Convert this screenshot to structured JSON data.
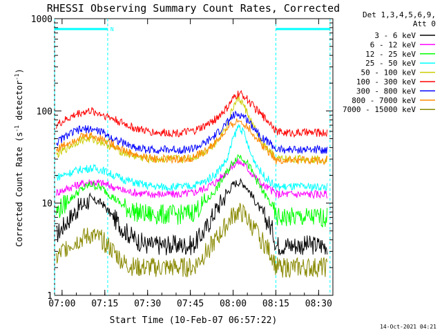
{
  "chart_data": {
    "type": "line",
    "title": "RHESSI Observing Summary Count Rates, Corrected",
    "xlabel": "Start Time (10-Feb-07 06:57:22)",
    "ylabel_main": "Corrected Count Rate (s",
    "ylabel_exp1": "-1",
    "ylabel_mid": " detector",
    "ylabel_exp2": "-1",
    "ylabel_end": ")",
    "y_scale": "log",
    "ylim": [
      1,
      1000
    ],
    "xlim": [
      "06:57:22",
      "08:35:00"
    ],
    "x_ticks": [
      "07:00",
      "07:15",
      "07:30",
      "07:45",
      "08:00",
      "08:15",
      "08:30"
    ],
    "y_ticks": [
      "1",
      "10",
      "100",
      "1000"
    ],
    "grid": false,
    "legend_position": "right",
    "legend_header": [
      "Det 1,3,4,5,6,9,",
      "Att 0"
    ],
    "footer_date": "14-Oct-2021 04:21",
    "night_intervals": [
      {
        "start": "06:57:22",
        "end": "07:16:00",
        "label": "N"
      },
      {
        "start": "08:15:00",
        "end": "08:34:00",
        "label": ""
      }
    ],
    "series": [
      {
        "name": "3 - 6 keV",
        "color": "#000000",
        "x": [
          "06:58",
          "07:02",
          "07:06",
          "07:10",
          "07:14",
          "07:18",
          "07:22",
          "07:26",
          "07:30",
          "07:34",
          "07:38",
          "07:42",
          "07:46",
          "07:50",
          "07:54",
          "07:58",
          "08:00",
          "08:02",
          "08:04",
          "08:06",
          "08:10",
          "08:14",
          "08:15",
          "08:18",
          "08:22",
          "08:26",
          "08:30",
          "08:33"
        ],
        "y": [
          4.5,
          6.5,
          9,
          11,
          10,
          7,
          5,
          4,
          3.5,
          3.5,
          3.5,
          3.5,
          3.5,
          5,
          8.5,
          13,
          16,
          17,
          16,
          13,
          8,
          5,
          3.5,
          3.5,
          3.5,
          3.5,
          3.5,
          3.5
        ]
      },
      {
        "name": "6 - 12 keV",
        "color": "#ff00ff",
        "x": [
          "06:58",
          "07:02",
          "07:06",
          "07:10",
          "07:14",
          "07:18",
          "07:22",
          "07:26",
          "07:30",
          "07:34",
          "07:38",
          "07:42",
          "07:46",
          "07:50",
          "07:54",
          "07:58",
          "08:00",
          "08:02",
          "08:04",
          "08:06",
          "08:10",
          "08:14",
          "08:15",
          "08:18",
          "08:22",
          "08:26",
          "08:30",
          "08:33"
        ],
        "y": [
          13,
          14.5,
          16,
          17,
          16.5,
          15,
          13.5,
          13,
          12.5,
          12.5,
          12.5,
          12.5,
          13,
          14.5,
          17,
          22,
          26,
          28,
          26,
          22,
          16,
          13.5,
          12.5,
          12.5,
          12.5,
          12.5,
          12.5,
          12.5
        ]
      },
      {
        "name": "12 - 25 keV",
        "color": "#00ff00",
        "x": [
          "06:58",
          "07:02",
          "07:06",
          "07:10",
          "07:14",
          "07:18",
          "07:22",
          "07:26",
          "07:30",
          "07:34",
          "07:38",
          "07:42",
          "07:46",
          "07:50",
          "07:54",
          "07:58",
          "08:00",
          "08:02",
          "08:04",
          "08:06",
          "08:10",
          "08:14",
          "08:15",
          "08:18",
          "08:22",
          "08:26",
          "08:30",
          "08:33"
        ],
        "y": [
          8,
          10.5,
          13.5,
          16,
          14.5,
          11.5,
          9,
          8,
          7.5,
          7.5,
          7.5,
          7.5,
          8,
          10,
          14,
          22,
          28,
          33,
          30,
          24,
          14,
          9,
          7,
          7,
          7,
          7,
          7,
          7
        ]
      },
      {
        "name": "25 - 50 keV",
        "color": "#00ffff",
        "x": [
          "06:58",
          "07:02",
          "07:06",
          "07:10",
          "07:14",
          "07:18",
          "07:22",
          "07:26",
          "07:30",
          "07:34",
          "07:38",
          "07:42",
          "07:46",
          "07:50",
          "07:54",
          "07:58",
          "08:00",
          "08:02",
          "08:04",
          "08:06",
          "08:10",
          "08:14",
          "08:15",
          "08:18",
          "08:22",
          "08:26",
          "08:30",
          "08:33"
        ],
        "y": [
          19,
          21,
          23,
          24,
          23,
          20,
          18,
          16.5,
          15.5,
          15,
          15,
          15,
          15.5,
          17,
          21,
          30,
          50,
          70,
          55,
          35,
          21,
          16,
          15,
          15,
          15,
          15,
          15,
          15
        ]
      },
      {
        "name": "50 - 100 keV",
        "color": "#cccc00",
        "x": [
          "06:58",
          "07:02",
          "07:06",
          "07:10",
          "07:14",
          "07:18",
          "07:22",
          "07:26",
          "07:30",
          "07:34",
          "07:38",
          "07:42",
          "07:46",
          "07:50",
          "07:54",
          "07:58",
          "08:00",
          "08:02",
          "08:04",
          "08:06",
          "08:10",
          "08:14",
          "08:15",
          "08:18",
          "08:22",
          "08:26",
          "08:30",
          "08:33"
        ],
        "y": [
          33,
          40,
          48,
          50,
          46,
          40,
          35,
          32,
          30,
          30,
          30,
          30,
          31,
          36,
          46,
          70,
          110,
          140,
          110,
          80,
          45,
          33,
          30,
          30,
          30,
          30,
          30,
          30
        ]
      },
      {
        "name": "100 - 300 keV",
        "color": "#ff0000",
        "x": [
          "06:58",
          "07:02",
          "07:06",
          "07:10",
          "07:14",
          "07:18",
          "07:22",
          "07:26",
          "07:30",
          "07:34",
          "07:38",
          "07:42",
          "07:46",
          "07:50",
          "07:54",
          "07:58",
          "08:00",
          "08:02",
          "08:04",
          "08:06",
          "08:10",
          "08:14",
          "08:15",
          "08:18",
          "08:22",
          "08:26",
          "08:30",
          "08:33"
        ],
        "y": [
          70,
          82,
          95,
          100,
          92,
          82,
          72,
          64,
          60,
          58,
          58,
          58,
          60,
          68,
          82,
          108,
          135,
          155,
          145,
          122,
          90,
          70,
          60,
          58,
          58,
          58,
          58,
          58
        ]
      },
      {
        "name": "300 - 800 keV",
        "color": "#0000ff",
        "x": [
          "06:58",
          "07:02",
          "07:06",
          "07:10",
          "07:14",
          "07:18",
          "07:22",
          "07:26",
          "07:30",
          "07:34",
          "07:38",
          "07:42",
          "07:46",
          "07:50",
          "07:54",
          "07:58",
          "08:00",
          "08:02",
          "08:04",
          "08:06",
          "08:10",
          "08:14",
          "08:15",
          "08:18",
          "08:22",
          "08:26",
          "08:30",
          "08:33"
        ],
        "y": [
          45,
          55,
          62,
          64,
          59,
          50,
          44,
          40,
          38,
          38,
          38,
          38,
          39,
          44,
          55,
          75,
          88,
          92,
          86,
          74,
          52,
          42,
          38,
          38,
          38,
          38,
          38,
          38
        ]
      },
      {
        "name": "800 - 7000 keV",
        "color": "#ff8800",
        "x": [
          "06:58",
          "07:02",
          "07:06",
          "07:10",
          "07:14",
          "07:18",
          "07:22",
          "07:26",
          "07:30",
          "07:34",
          "07:38",
          "07:42",
          "07:46",
          "07:50",
          "07:54",
          "07:58",
          "08:00",
          "08:02",
          "08:04",
          "08:06",
          "08:10",
          "08:14",
          "08:15",
          "08:18",
          "08:22",
          "08:26",
          "08:30",
          "08:33"
        ],
        "y": [
          38,
          45,
          52,
          54,
          50,
          43,
          37,
          33,
          31,
          30,
          30,
          30,
          31,
          36,
          46,
          62,
          73,
          78,
          73,
          62,
          43,
          33,
          29,
          29,
          29,
          29,
          29,
          29
        ]
      },
      {
        "name": "7000 - 15000 keV",
        "color": "#888800",
        "x": [
          "06:58",
          "07:02",
          "07:06",
          "07:10",
          "07:14",
          "07:18",
          "07:22",
          "07:26",
          "07:30",
          "07:34",
          "07:38",
          "07:42",
          "07:46",
          "07:50",
          "07:54",
          "07:58",
          "08:00",
          "08:02",
          "08:04",
          "08:06",
          "08:10",
          "08:14",
          "08:15",
          "08:18",
          "08:22",
          "08:26",
          "08:30",
          "08:33"
        ],
        "y": [
          2.5,
          3.5,
          4,
          4.5,
          4,
          3,
          2.2,
          2,
          2,
          2,
          2,
          2,
          2,
          2.8,
          4,
          6,
          7.5,
          8,
          7.5,
          6,
          4,
          2.6,
          2,
          2,
          2,
          2,
          2,
          2
        ]
      }
    ]
  }
}
